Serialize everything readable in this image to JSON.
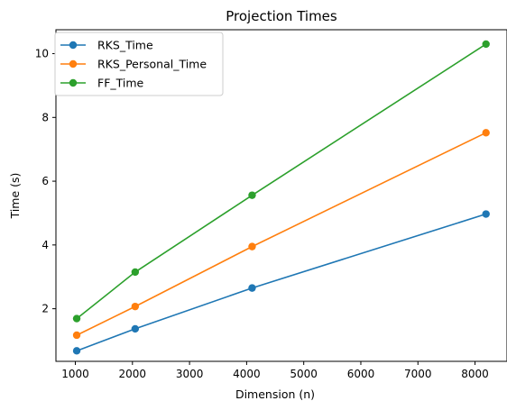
{
  "chart_data": {
    "type": "line",
    "title": "Projection Times",
    "xlabel": "Dimension (n)",
    "ylabel": "Time (s)",
    "x": [
      1024,
      2048,
      4096,
      8192
    ],
    "xlim": [
      660,
      8560
    ],
    "ylim": [
      0.35,
      10.75
    ],
    "xticks": [
      1000,
      2000,
      3000,
      4000,
      5000,
      6000,
      7000,
      8000
    ],
    "yticks": [
      2,
      4,
      6,
      8,
      10
    ],
    "grid": false,
    "legend": "top-left",
    "series": [
      {
        "name": "RKS_Time",
        "color": "#1f77b4",
        "values": [
          0.68,
          1.37,
          2.65,
          4.97
        ]
      },
      {
        "name": "RKS_Personal_Time",
        "color": "#ff7f0e",
        "values": [
          1.17,
          2.07,
          3.95,
          7.52
        ]
      },
      {
        "name": "FF_Time",
        "color": "#2ca02c",
        "values": [
          1.69,
          3.15,
          5.56,
          10.3
        ]
      }
    ]
  }
}
